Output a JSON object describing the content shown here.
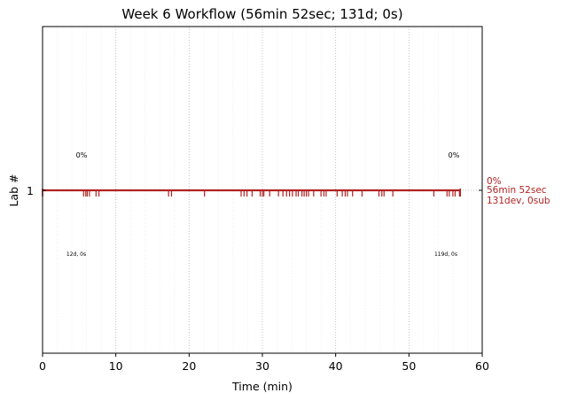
{
  "chart_data": {
    "type": "timeline",
    "title": "Week 6 Workflow (56min 52sec; 131d; 0s)",
    "xlabel": "Time (min)",
    "ylabel": "Lab #",
    "xlim": [
      0,
      60
    ],
    "x_ticks": [
      0,
      10,
      20,
      30,
      40,
      50,
      60
    ],
    "y_ticks": [
      1
    ],
    "grid": "dotted vertical",
    "series_color": "#b22222",
    "lanes": [
      {
        "lab": 1,
        "start_min": 0,
        "end_min": 57,
        "events_min": [
          5.6,
          5.9,
          6.1,
          6.4,
          7.3,
          7.7,
          17.2,
          17.6,
          22.1,
          27.1,
          27.5,
          27.9,
          28.6,
          29.7,
          30.0,
          30.2,
          31.0,
          32.2,
          32.8,
          33.3,
          33.7,
          34.1,
          34.6,
          34.9,
          35.4,
          35.7,
          36.0,
          36.3,
          37.0,
          38.0,
          38.4,
          38.7,
          40.2,
          40.9,
          41.3,
          41.6,
          42.3,
          43.6,
          45.9,
          46.3,
          46.6,
          47.8,
          53.4,
          55.2,
          55.5,
          56.0,
          56.3,
          56.9
        ],
        "segments": [
          {
            "position": "start",
            "percent_label": "0%",
            "count_label": "12d, 0s"
          },
          {
            "position": "end",
            "percent_label": "0%",
            "count_label": "119d, 0s"
          }
        ],
        "side_label": [
          "0%",
          "56min 52sec",
          "131dev, 0sub"
        ]
      }
    ]
  }
}
